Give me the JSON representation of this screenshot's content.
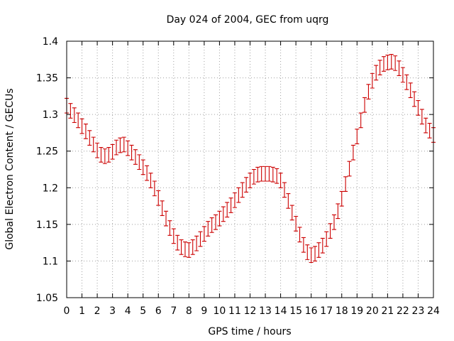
{
  "chart_data": {
    "type": "line",
    "title": "Day 024 of 2004, GEC from uqrg",
    "xlabel": "GPS time / hours",
    "ylabel": "Global Electron Content / GECUs",
    "xlim": [
      0,
      24
    ],
    "ylim": [
      1.05,
      1.4
    ],
    "xticks": [
      "0",
      "1",
      "2",
      "3",
      "4",
      "5",
      "6",
      "7",
      "8",
      "9",
      "10",
      "11",
      "12",
      "13",
      "14",
      "15",
      "16",
      "17",
      "18",
      "19",
      "20",
      "21",
      "22",
      "23",
      "24"
    ],
    "yticks": [
      "1.05",
      "1.1",
      "1.15",
      "1.2",
      "1.25",
      "1.3",
      "1.35",
      "1.4"
    ],
    "grid": true,
    "error_bar_half_width": 0.01,
    "colors": {
      "series": "#cc0000",
      "grid": "#a0a0a0",
      "axis": "#000000"
    },
    "series": [
      {
        "x": [
          0,
          0.25,
          0.5,
          0.75,
          1,
          1.25,
          1.5,
          1.75,
          2,
          2.25,
          2.5,
          2.75,
          3,
          3.25,
          3.5,
          3.75,
          4,
          4.25,
          4.5,
          4.75,
          5,
          5.25,
          5.5,
          5.75,
          6,
          6.25,
          6.5,
          6.75,
          7,
          7.25,
          7.5,
          7.75,
          8,
          8.25,
          8.5,
          8.75,
          9,
          9.25,
          9.5,
          9.75,
          10,
          10.25,
          10.5,
          10.75,
          11,
          11.25,
          11.5,
          11.75,
          12,
          12.25,
          12.5,
          12.75,
          13,
          13.25,
          13.5,
          13.75,
          14,
          14.25,
          14.5,
          14.75,
          15,
          15.25,
          15.5,
          15.75,
          16,
          16.25,
          16.5,
          16.75,
          17,
          17.25,
          17.5,
          17.75,
          18,
          18.25,
          18.5,
          18.75,
          19,
          19.25,
          19.5,
          19.75,
          20,
          20.25,
          20.5,
          20.75,
          21,
          21.25,
          21.5,
          21.75,
          22,
          22.25,
          22.5,
          22.75,
          23,
          23.25,
          23.5,
          23.75,
          24
        ],
        "values": [
          1.312,
          1.305,
          1.299,
          1.292,
          1.284,
          1.277,
          1.268,
          1.259,
          1.251,
          1.245,
          1.243,
          1.245,
          1.249,
          1.255,
          1.258,
          1.259,
          1.254,
          1.248,
          1.242,
          1.235,
          1.228,
          1.22,
          1.21,
          1.199,
          1.186,
          1.172,
          1.158,
          1.145,
          1.134,
          1.125,
          1.119,
          1.116,
          1.115,
          1.119,
          1.124,
          1.13,
          1.137,
          1.144,
          1.149,
          1.153,
          1.158,
          1.164,
          1.17,
          1.176,
          1.183,
          1.19,
          1.197,
          1.204,
          1.21,
          1.215,
          1.218,
          1.219,
          1.219,
          1.219,
          1.218,
          1.216,
          1.21,
          1.197,
          1.182,
          1.166,
          1.151,
          1.136,
          1.122,
          1.112,
          1.108,
          1.11,
          1.115,
          1.121,
          1.13,
          1.141,
          1.153,
          1.168,
          1.185,
          1.205,
          1.226,
          1.248,
          1.27,
          1.292,
          1.313,
          1.331,
          1.346,
          1.357,
          1.364,
          1.369,
          1.371,
          1.372,
          1.37,
          1.363,
          1.354,
          1.344,
          1.333,
          1.321,
          1.309,
          1.297,
          1.285,
          1.278,
          1.272
        ]
      }
    ]
  }
}
